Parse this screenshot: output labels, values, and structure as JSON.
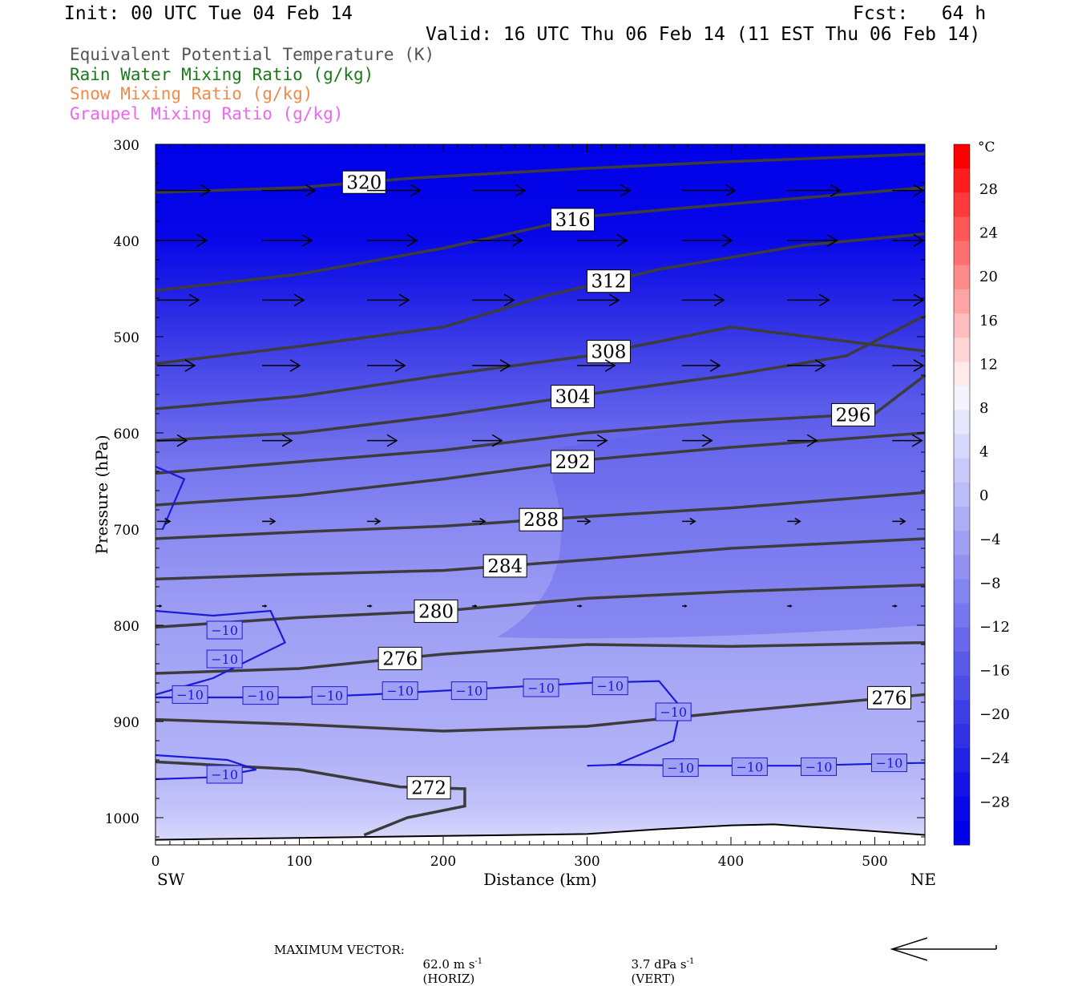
{
  "header": {
    "init": "Init: 00 UTC Tue 04 Feb 14",
    "fcst": "Fcst:   64 h",
    "valid": "Valid: 16 UTC Thu 06 Feb 14 (11 EST Thu 06 Feb 14)",
    "legend": [
      {
        "text": "Equivalent Potential Temperature (K)",
        "color": "#555555"
      },
      {
        "text": "Rain Water Mixing Ratio (g/kg)",
        "color": "#1a7a1a"
      },
      {
        "text": "Snow Mixing Ratio (g/kg)",
        "color": "#f08a4b"
      },
      {
        "text": "Graupel Mixing Ratio (g/kg)",
        "color": "#ee66ee"
      }
    ]
  },
  "footer": {
    "label": "MAXIMUM VECTOR:",
    "horiz": "62.0 m s",
    "horiz_unit": "(HORIZ)",
    "vert": "3.7 dPa s",
    "vert_unit": "(VERT)",
    "exponent": "-1"
  },
  "chart_data": {
    "type": "cross-section",
    "xlabel": "Distance (km)",
    "ylabel": "Pressure (hPa)",
    "xlim": [
      0,
      535
    ],
    "ylim": [
      1025,
      300
    ],
    "x_ticks": [
      0,
      100,
      200,
      300,
      400,
      500
    ],
    "y_ticks": [
      300,
      400,
      500,
      600,
      700,
      800,
      900,
      1000
    ],
    "left_end": "SW",
    "right_end": "NE",
    "colorbar": {
      "unit": "°C",
      "labels": [
        28,
        24,
        20,
        16,
        12,
        8,
        4,
        0,
        -4,
        -8,
        -12,
        -16,
        -20,
        -24,
        -28
      ],
      "colors": [
        "#ff0000",
        "#ff1e1e",
        "#ff3a3a",
        "#ff5656",
        "#ff7070",
        "#ff8a8a",
        "#ffa4a4",
        "#ffbcbc",
        "#ffd4d4",
        "#ffeaea",
        "#f4f4fe",
        "#e6e6fd",
        "#d8d8fc",
        "#cacafa",
        "#bcbcf8",
        "#aeaef6",
        "#a0a0f4",
        "#9292f2",
        "#8484f0",
        "#7676ee",
        "#6868ec",
        "#5a5aea",
        "#4c4ce8",
        "#3e3ee6",
        "#3030e4",
        "#2222e4",
        "#1414e6",
        "#0808e8",
        "#0000ea"
      ]
    },
    "theta_e": [
      {
        "value": 320,
        "points": [
          [
            0,
            350
          ],
          [
            100,
            345
          ],
          [
            180,
            335
          ],
          [
            300,
            325
          ],
          [
            400,
            318
          ],
          [
            535,
            310
          ]
        ],
        "label_x": 145
      },
      {
        "value": 316,
        "points": [
          [
            0,
            452
          ],
          [
            100,
            435
          ],
          [
            200,
            408
          ],
          [
            300,
            375
          ],
          [
            400,
            362
          ],
          [
            535,
            345
          ]
        ],
        "label_x": 290
      },
      {
        "value": 312,
        "points": [
          [
            0,
            528
          ],
          [
            100,
            510
          ],
          [
            200,
            490
          ],
          [
            270,
            458
          ],
          [
            350,
            430
          ],
          [
            450,
            405
          ],
          [
            535,
            393
          ]
        ],
        "label_x": 315
      },
      {
        "value": 308,
        "points": [
          [
            0,
            575
          ],
          [
            100,
            562
          ],
          [
            200,
            540
          ],
          [
            300,
            520
          ],
          [
            400,
            490
          ],
          [
            535,
            515
          ]
        ],
        "label_x": 315
      },
      {
        "value": 304,
        "points": [
          [
            0,
            608
          ],
          [
            100,
            600
          ],
          [
            200,
            582
          ],
          [
            300,
            560
          ],
          [
            400,
            540
          ],
          [
            480,
            520
          ],
          [
            535,
            478
          ]
        ],
        "label_x": 290
      },
      {
        "value": 296,
        "points": [
          [
            0,
            642
          ],
          [
            100,
            630
          ],
          [
            200,
            618
          ],
          [
            300,
            600
          ],
          [
            400,
            588
          ],
          [
            500,
            580
          ],
          [
            535,
            540
          ]
        ],
        "label_x": 485
      },
      {
        "value": 292,
        "points": [
          [
            0,
            675
          ],
          [
            100,
            665
          ],
          [
            200,
            648
          ],
          [
            300,
            628
          ],
          [
            400,
            615
          ],
          [
            535,
            600
          ]
        ],
        "label_x": 290
      },
      {
        "value": 288,
        "points": [
          [
            0,
            710
          ],
          [
            100,
            703
          ],
          [
            200,
            697
          ],
          [
            300,
            687
          ],
          [
            400,
            678
          ],
          [
            535,
            662
          ]
        ],
        "label_x": 268
      },
      {
        "value": 284,
        "points": [
          [
            0,
            752
          ],
          [
            100,
            747
          ],
          [
            200,
            743
          ],
          [
            300,
            732
          ],
          [
            400,
            720
          ],
          [
            535,
            710
          ]
        ],
        "label_x": 243
      },
      {
        "value": 280,
        "points": [
          [
            0,
            802
          ],
          [
            100,
            792
          ],
          [
            200,
            785
          ],
          [
            300,
            772
          ],
          [
            400,
            765
          ],
          [
            535,
            758
          ]
        ],
        "label_x": 195
      },
      {
        "value": 276,
        "points": [
          [
            0,
            850
          ],
          [
            100,
            845
          ],
          [
            200,
            830
          ],
          [
            300,
            820
          ],
          [
            400,
            822
          ],
          [
            535,
            818
          ]
        ],
        "label_x": 170
      },
      {
        "value": 276,
        "points": [
          [
            0,
            898
          ],
          [
            100,
            903
          ],
          [
            200,
            910
          ],
          [
            300,
            905
          ],
          [
            400,
            890
          ],
          [
            535,
            872
          ]
        ],
        "label_x": 510
      },
      {
        "value": 272,
        "points": [
          [
            0,
            942
          ],
          [
            100,
            950
          ],
          [
            170,
            968
          ],
          [
            215,
            970
          ],
          [
            215,
            988
          ],
          [
            175,
            1000
          ],
          [
            145,
            1018
          ]
        ],
        "label_x": 190
      }
    ],
    "isotherm_neg10": [
      {
        "points": [
          [
            0,
            635
          ],
          [
            20,
            648
          ],
          [
            5,
            700
          ]
        ]
      },
      {
        "points": [
          [
            0,
            785
          ],
          [
            40,
            790
          ],
          [
            80,
            785
          ],
          [
            90,
            818
          ],
          [
            60,
            840
          ],
          [
            40,
            855
          ],
          [
            0,
            872
          ]
        ]
      },
      {
        "points": [
          [
            0,
            875
          ],
          [
            50,
            875
          ],
          [
            100,
            875
          ],
          [
            150,
            872
          ],
          [
            200,
            868
          ],
          [
            250,
            864
          ],
          [
            300,
            860
          ],
          [
            350,
            858
          ],
          [
            365,
            885
          ],
          [
            360,
            920
          ],
          [
            320,
            945
          ],
          [
            300,
            946
          ]
        ]
      },
      {
        "points": [
          [
            320,
            945
          ],
          [
            380,
            946
          ],
          [
            450,
            946
          ],
          [
            500,
            944
          ],
          [
            535,
            943
          ]
        ]
      },
      {
        "points": [
          [
            0,
            935
          ],
          [
            50,
            940
          ],
          [
            70,
            950
          ],
          [
            40,
            958
          ],
          [
            0,
            960
          ]
        ]
      }
    ],
    "isotherm_labels": [
      {
        "x": 48,
        "p": 805,
        "text": "−10"
      },
      {
        "x": 48,
        "p": 835,
        "text": "−10"
      },
      {
        "x": 24,
        "p": 872,
        "text": "−10"
      },
      {
        "x": 73,
        "p": 873,
        "text": "−10"
      },
      {
        "x": 121,
        "p": 873,
        "text": "−10"
      },
      {
        "x": 170,
        "p": 868,
        "text": "−10"
      },
      {
        "x": 218,
        "p": 868,
        "text": "−10"
      },
      {
        "x": 268,
        "p": 865,
        "text": "−10"
      },
      {
        "x": 316,
        "p": 863,
        "text": "−10"
      },
      {
        "x": 360,
        "p": 890,
        "text": "−10"
      },
      {
        "x": 48,
        "p": 955,
        "text": "−10"
      },
      {
        "x": 365,
        "p": 948,
        "text": "−10"
      },
      {
        "x": 413,
        "p": 947,
        "text": "−10"
      },
      {
        "x": 461,
        "p": 947,
        "text": "−10"
      },
      {
        "x": 510,
        "p": 943,
        "text": "−10"
      }
    ],
    "wind_vectors": [
      {
        "p": 348,
        "xs": [
          0,
          73,
          146,
          219,
          292,
          365,
          438,
          511
        ],
        "len": 66
      },
      {
        "p": 400,
        "xs": [
          0,
          73,
          146,
          219,
          292,
          365,
          438,
          511
        ],
        "len": 62
      },
      {
        "p": 462,
        "xs": [
          0,
          73,
          146,
          219,
          292,
          365,
          438,
          511
        ],
        "len": 52
      },
      {
        "p": 530,
        "xs": [
          0,
          73,
          146,
          219,
          292,
          365,
          438,
          511
        ],
        "len": 47
      },
      {
        "p": 608,
        "xs": [
          0,
          73,
          146,
          219,
          292,
          365,
          438,
          511
        ],
        "len": 37
      },
      {
        "p": 692,
        "xs": [
          0,
          73,
          146,
          219,
          292,
          365,
          438,
          511
        ],
        "len": 16
      },
      {
        "p": 780,
        "xs": [
          0,
          73,
          146,
          219,
          292,
          365,
          438,
          511
        ],
        "len": 5
      }
    ],
    "terrain": {
      "points": [
        [
          0,
          1023
        ],
        [
          100,
          1021
        ],
        [
          200,
          1019
        ],
        [
          300,
          1017
        ],
        [
          350,
          1012
        ],
        [
          400,
          1008
        ],
        [
          430,
          1007
        ],
        [
          480,
          1012
        ],
        [
          535,
          1018
        ]
      ]
    }
  }
}
